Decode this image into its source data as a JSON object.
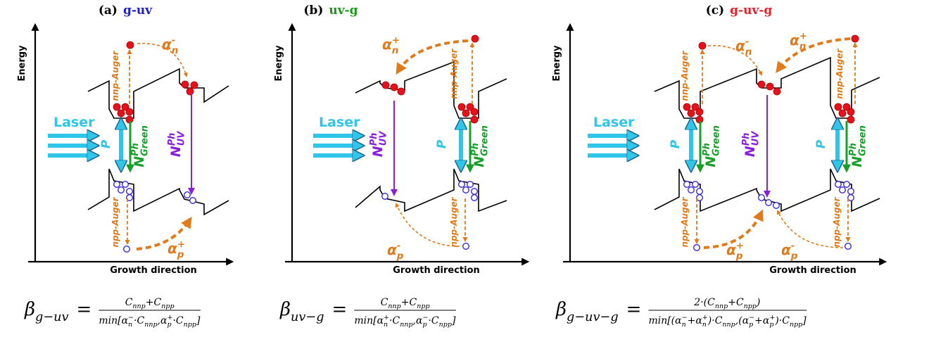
{
  "panels": [
    {
      "label": "(a)",
      "name": "g-uv",
      "name_color": "#1f1fc8",
      "y_axis": "Energy",
      "x_axis": "Growth direction",
      "laser": "Laser",
      "pump": [
        "P"
      ],
      "green": [
        {
          "t": "N",
          "sup": "Ph",
          "sub": "Green"
        }
      ],
      "uv": [
        {
          "t": "N",
          "sup": "Ph",
          "sub": "UV"
        }
      ],
      "nnp": [
        "nnp-Auger"
      ],
      "npp": [
        "npp-Auger"
      ],
      "alpha": [
        {
          "t": "α",
          "sup": "-",
          "sub": "n"
        },
        {
          "t": "α",
          "sup": "+",
          "sub": "p"
        }
      ]
    },
    {
      "label": "(b)",
      "name": "uv-g",
      "name_color": "#1a9a1a",
      "y_axis": "Energy",
      "x_axis": "Growth direction",
      "laser": "Laser",
      "pump": [
        "P"
      ],
      "green": [
        {
          "t": "N",
          "sup": "Ph",
          "sub": "Green"
        }
      ],
      "uv": [
        {
          "t": "N",
          "sup": "Ph",
          "sub": "UV"
        }
      ],
      "nnp": [
        "nnp-Auger"
      ],
      "npp": [
        "npp-Auger"
      ],
      "alpha": [
        {
          "t": "α",
          "sup": "+",
          "sub": "n"
        },
        {
          "t": "α",
          "sup": "-",
          "sub": "p"
        }
      ]
    },
    {
      "label": "(c)",
      "name": "g-uv-g",
      "name_color": "#e8202a",
      "y_axis": "Energy",
      "x_axis": "Growth direction",
      "laser": "Laser",
      "pump": [
        "P",
        "P"
      ],
      "green": [
        {
          "t": "N",
          "sup": "Ph",
          "sub": "Green"
        },
        {
          "t": "N",
          "sup": "Ph",
          "sub": "Green"
        }
      ],
      "uv": [
        {
          "t": "N",
          "sup": "Ph",
          "sub": "UV"
        }
      ],
      "nnp": [
        "nnp-Auger",
        "nnp-Auger"
      ],
      "npp": [
        "npp-Auger",
        "npp-Auger"
      ],
      "alpha": [
        {
          "t": "α",
          "sup": "-",
          "sub": "n"
        },
        {
          "t": "α",
          "sup": "+",
          "sub": "n"
        },
        {
          "t": "α",
          "sup": "+",
          "sub": "p"
        },
        {
          "t": "α",
          "sup": "-",
          "sub": "p"
        }
      ]
    }
  ],
  "equations": [
    {
      "lhs": [
        {
          "t": "β",
          "sub": "g−uv"
        }
      ],
      "op": "=",
      "num": [
        {
          "t": "C",
          "sub": "nnp"
        },
        {
          "t": "+"
        },
        {
          "t": "C",
          "sub": "npp"
        }
      ],
      "den": [
        {
          "t": "min["
        },
        {
          "t": "α",
          "sub": "n",
          "sup": "−"
        },
        {
          "t": "·"
        },
        {
          "t": "C",
          "sub": "nnp"
        },
        {
          "t": ","
        },
        {
          "t": "α",
          "sub": "p",
          "sup": "+"
        },
        {
          "t": "·"
        },
        {
          "t": "C",
          "sub": "npp"
        },
        {
          "t": "]"
        }
      ]
    },
    {
      "lhs": [
        {
          "t": "β",
          "sub": "uv−g"
        }
      ],
      "op": "=",
      "num": [
        {
          "t": "C",
          "sub": "nnp"
        },
        {
          "t": "+"
        },
        {
          "t": "C",
          "sub": "npp"
        }
      ],
      "den": [
        {
          "t": "min["
        },
        {
          "t": "α",
          "sub": "n",
          "sup": "+"
        },
        {
          "t": "·"
        },
        {
          "t": "C",
          "sub": "nnp"
        },
        {
          "t": ","
        },
        {
          "t": "α",
          "sub": "p",
          "sup": "−"
        },
        {
          "t": "·"
        },
        {
          "t": "C",
          "sub": "npp"
        },
        {
          "t": "]"
        }
      ]
    },
    {
      "lhs": [
        {
          "t": "β",
          "sub": "g−uv−g"
        }
      ],
      "op": "=",
      "num": [
        {
          "t": "2·("
        },
        {
          "t": "C",
          "sub": "nnp"
        },
        {
          "t": "+"
        },
        {
          "t": "C",
          "sub": "npp"
        },
        {
          "t": ")"
        }
      ],
      "den": [
        {
          "t": "min[("
        },
        {
          "t": "α",
          "sub": "n",
          "sup": "−"
        },
        {
          "t": "+"
        },
        {
          "t": "α",
          "sub": "n",
          "sup": "+"
        },
        {
          "t": ")·"
        },
        {
          "t": "C",
          "sub": "nnp"
        },
        {
          "t": ",("
        },
        {
          "t": "α",
          "sub": "p",
          "sup": "−"
        },
        {
          "t": "+"
        },
        {
          "t": "α",
          "sub": "p",
          "sup": "+"
        },
        {
          "t": ")·"
        },
        {
          "t": "C",
          "sub": "npp"
        },
        {
          "t": "]"
        }
      ]
    }
  ]
}
